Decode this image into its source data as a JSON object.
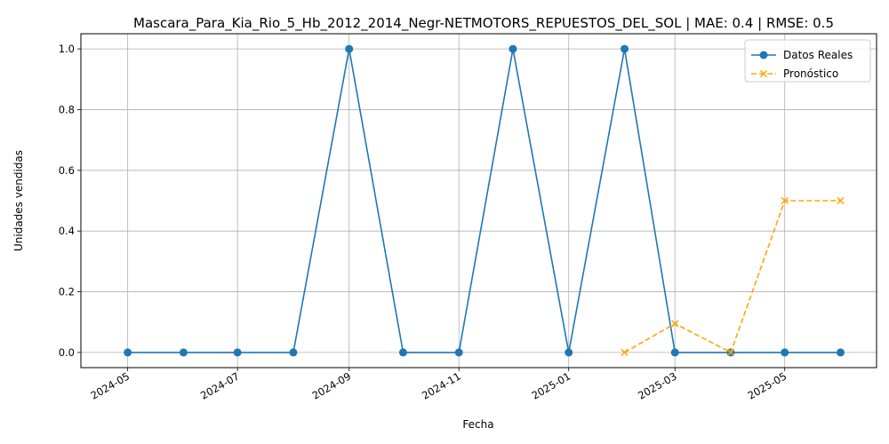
{
  "chart_data": {
    "type": "line",
    "title": "Mascara_Para_Kia_Rio_5_Hb_2012_2014_Negr-NETMOTORS_REPUESTOS_DEL_SOL | MAE: 0.4 | RMSE: 0.5",
    "xlabel": "Fecha",
    "ylabel": "Unidades vendidas",
    "xlim": [
      "2024-04-05",
      "2025-06-21"
    ],
    "ylim": [
      -0.05,
      1.05
    ],
    "x_ticks": [
      "2024-05",
      "2024-07",
      "2024-09",
      "2024-11",
      "2025-01",
      "2025-03",
      "2025-05"
    ],
    "y_ticks": [
      "0.0",
      "0.2",
      "0.4",
      "0.6",
      "0.8",
      "1.0"
    ],
    "grid": true,
    "legend_position": "top-right",
    "series": [
      {
        "name": "Datos Reales",
        "color": "#1f77b4",
        "style": "solid",
        "marker": "circle",
        "x": [
          "2024-05-01",
          "2024-06-01",
          "2024-07-01",
          "2024-08-01",
          "2024-09-01",
          "2024-10-01",
          "2024-11-01",
          "2024-12-01",
          "2025-01-01",
          "2025-02-01",
          "2025-03-01",
          "2025-04-01",
          "2025-05-01",
          "2025-06-01"
        ],
        "values": [
          0,
          0,
          0,
          0,
          1,
          0,
          0,
          1,
          0,
          1,
          0,
          0,
          0,
          0
        ]
      },
      {
        "name": "Pronóstico",
        "color": "#ffa500",
        "style": "dashed",
        "marker": "x",
        "x": [
          "2025-02-01",
          "2025-03-01",
          "2025-04-01",
          "2025-05-01",
          "2025-06-01"
        ],
        "values": [
          0.0,
          0.095,
          0.0,
          0.5,
          0.5
        ]
      }
    ]
  }
}
